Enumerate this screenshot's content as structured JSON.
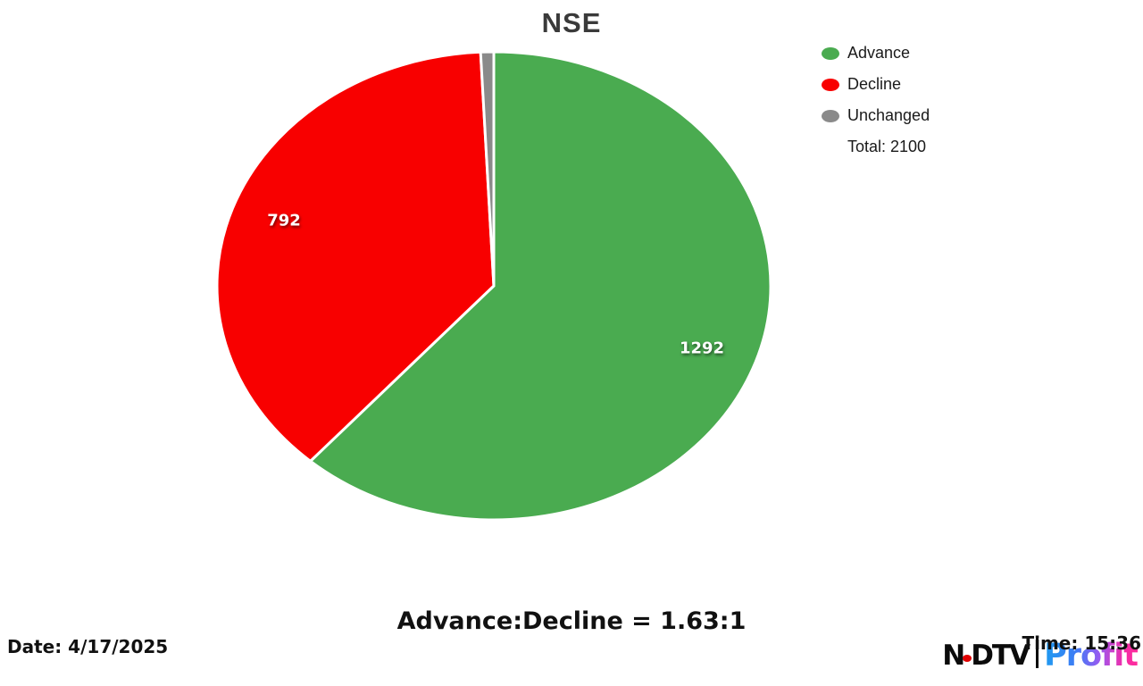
{
  "chart_data": {
    "type": "pie",
    "title": "NSE",
    "categories": [
      "Advance",
      "Decline",
      "Unchanged"
    ],
    "values": [
      1292,
      792,
      16
    ],
    "segments": [
      {
        "label": "Advance",
        "value": 1292,
        "color": "#4aab50"
      },
      {
        "label": "Decline",
        "value": 792,
        "color": "#f80000"
      },
      {
        "label": "Unchanged",
        "value": 16,
        "color": "#8a8a8a"
      }
    ],
    "total": 2100,
    "total_label": "Total: 2100",
    "legend_position": "right",
    "start_angle_deg": 0,
    "direction": "clockwise",
    "slice_border_color": "#ffffff",
    "visible_value_labels": {
      "advance": 1292,
      "decline": 792
    }
  },
  "footer": {
    "ratio": "Advance:Decline = 1.63:1",
    "date": "Date: 4/17/2025",
    "time": "Time: 15:36"
  },
  "logo": {
    "ndtv": "NDTV",
    "separator_bar": "|",
    "profit": "Profit"
  }
}
